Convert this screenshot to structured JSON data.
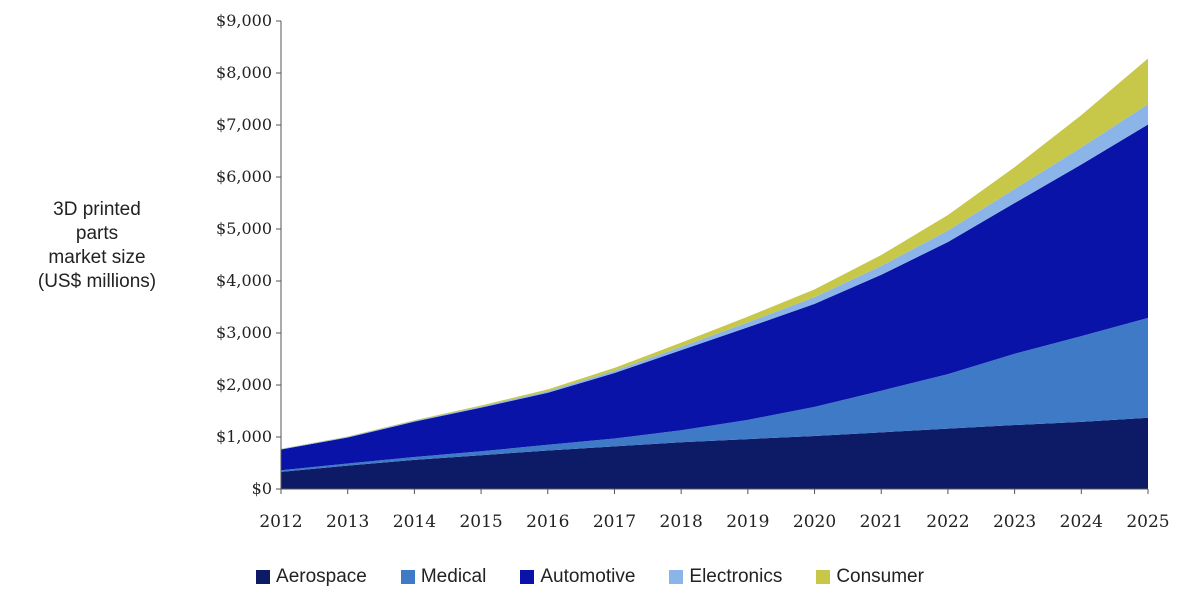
{
  "chart_data": {
    "type": "area",
    "stacked": true,
    "ylabel_lines": [
      "3D printed",
      "parts",
      "market size",
      "(US$ millions)"
    ],
    "x": [
      "2012",
      "2013",
      "2014",
      "2015",
      "2016",
      "2017",
      "2018",
      "2019",
      "2020",
      "2021",
      "2022",
      "2023",
      "2024",
      "2025"
    ],
    "ylim": [
      0,
      9000
    ],
    "yticks": [
      0,
      1000,
      2000,
      3000,
      4000,
      5000,
      6000,
      7000,
      8000,
      9000
    ],
    "ytick_labels": [
      "$0",
      "$1,000",
      "$2,000",
      "$3,000",
      "$4,000",
      "$5,000",
      "$6,000",
      "$7,000",
      "$8,000",
      "$9,000"
    ],
    "grid": false,
    "legend_position": "bottom",
    "series": [
      {
        "name": "Aerospace",
        "color": "#0d1a66",
        "values": [
          330,
          450,
          560,
          650,
          740,
          820,
          900,
          960,
          1020,
          1090,
          1160,
          1230,
          1290,
          1370
        ]
      },
      {
        "name": "Medical",
        "color": "#3f7ac6",
        "values": [
          30,
          40,
          55,
          75,
          110,
          150,
          230,
          370,
          560,
          800,
          1050,
          1370,
          1650,
          1920
        ]
      },
      {
        "name": "Automotive",
        "color": "#0a13a8",
        "values": [
          400,
          500,
          680,
          840,
          1000,
          1260,
          1540,
          1780,
          1980,
          2230,
          2540,
          2900,
          3300,
          3720
        ]
      },
      {
        "name": "Electronics",
        "color": "#8bb4e8",
        "values": [
          10,
          12,
          15,
          20,
          30,
          45,
          65,
          95,
          130,
          170,
          220,
          270,
          330,
          390
        ]
      },
      {
        "name": "Consumer",
        "color": "#c7c84a",
        "values": [
          5,
          8,
          12,
          20,
          35,
          55,
          80,
          110,
          150,
          210,
          300,
          420,
          620,
          880
        ]
      }
    ]
  }
}
